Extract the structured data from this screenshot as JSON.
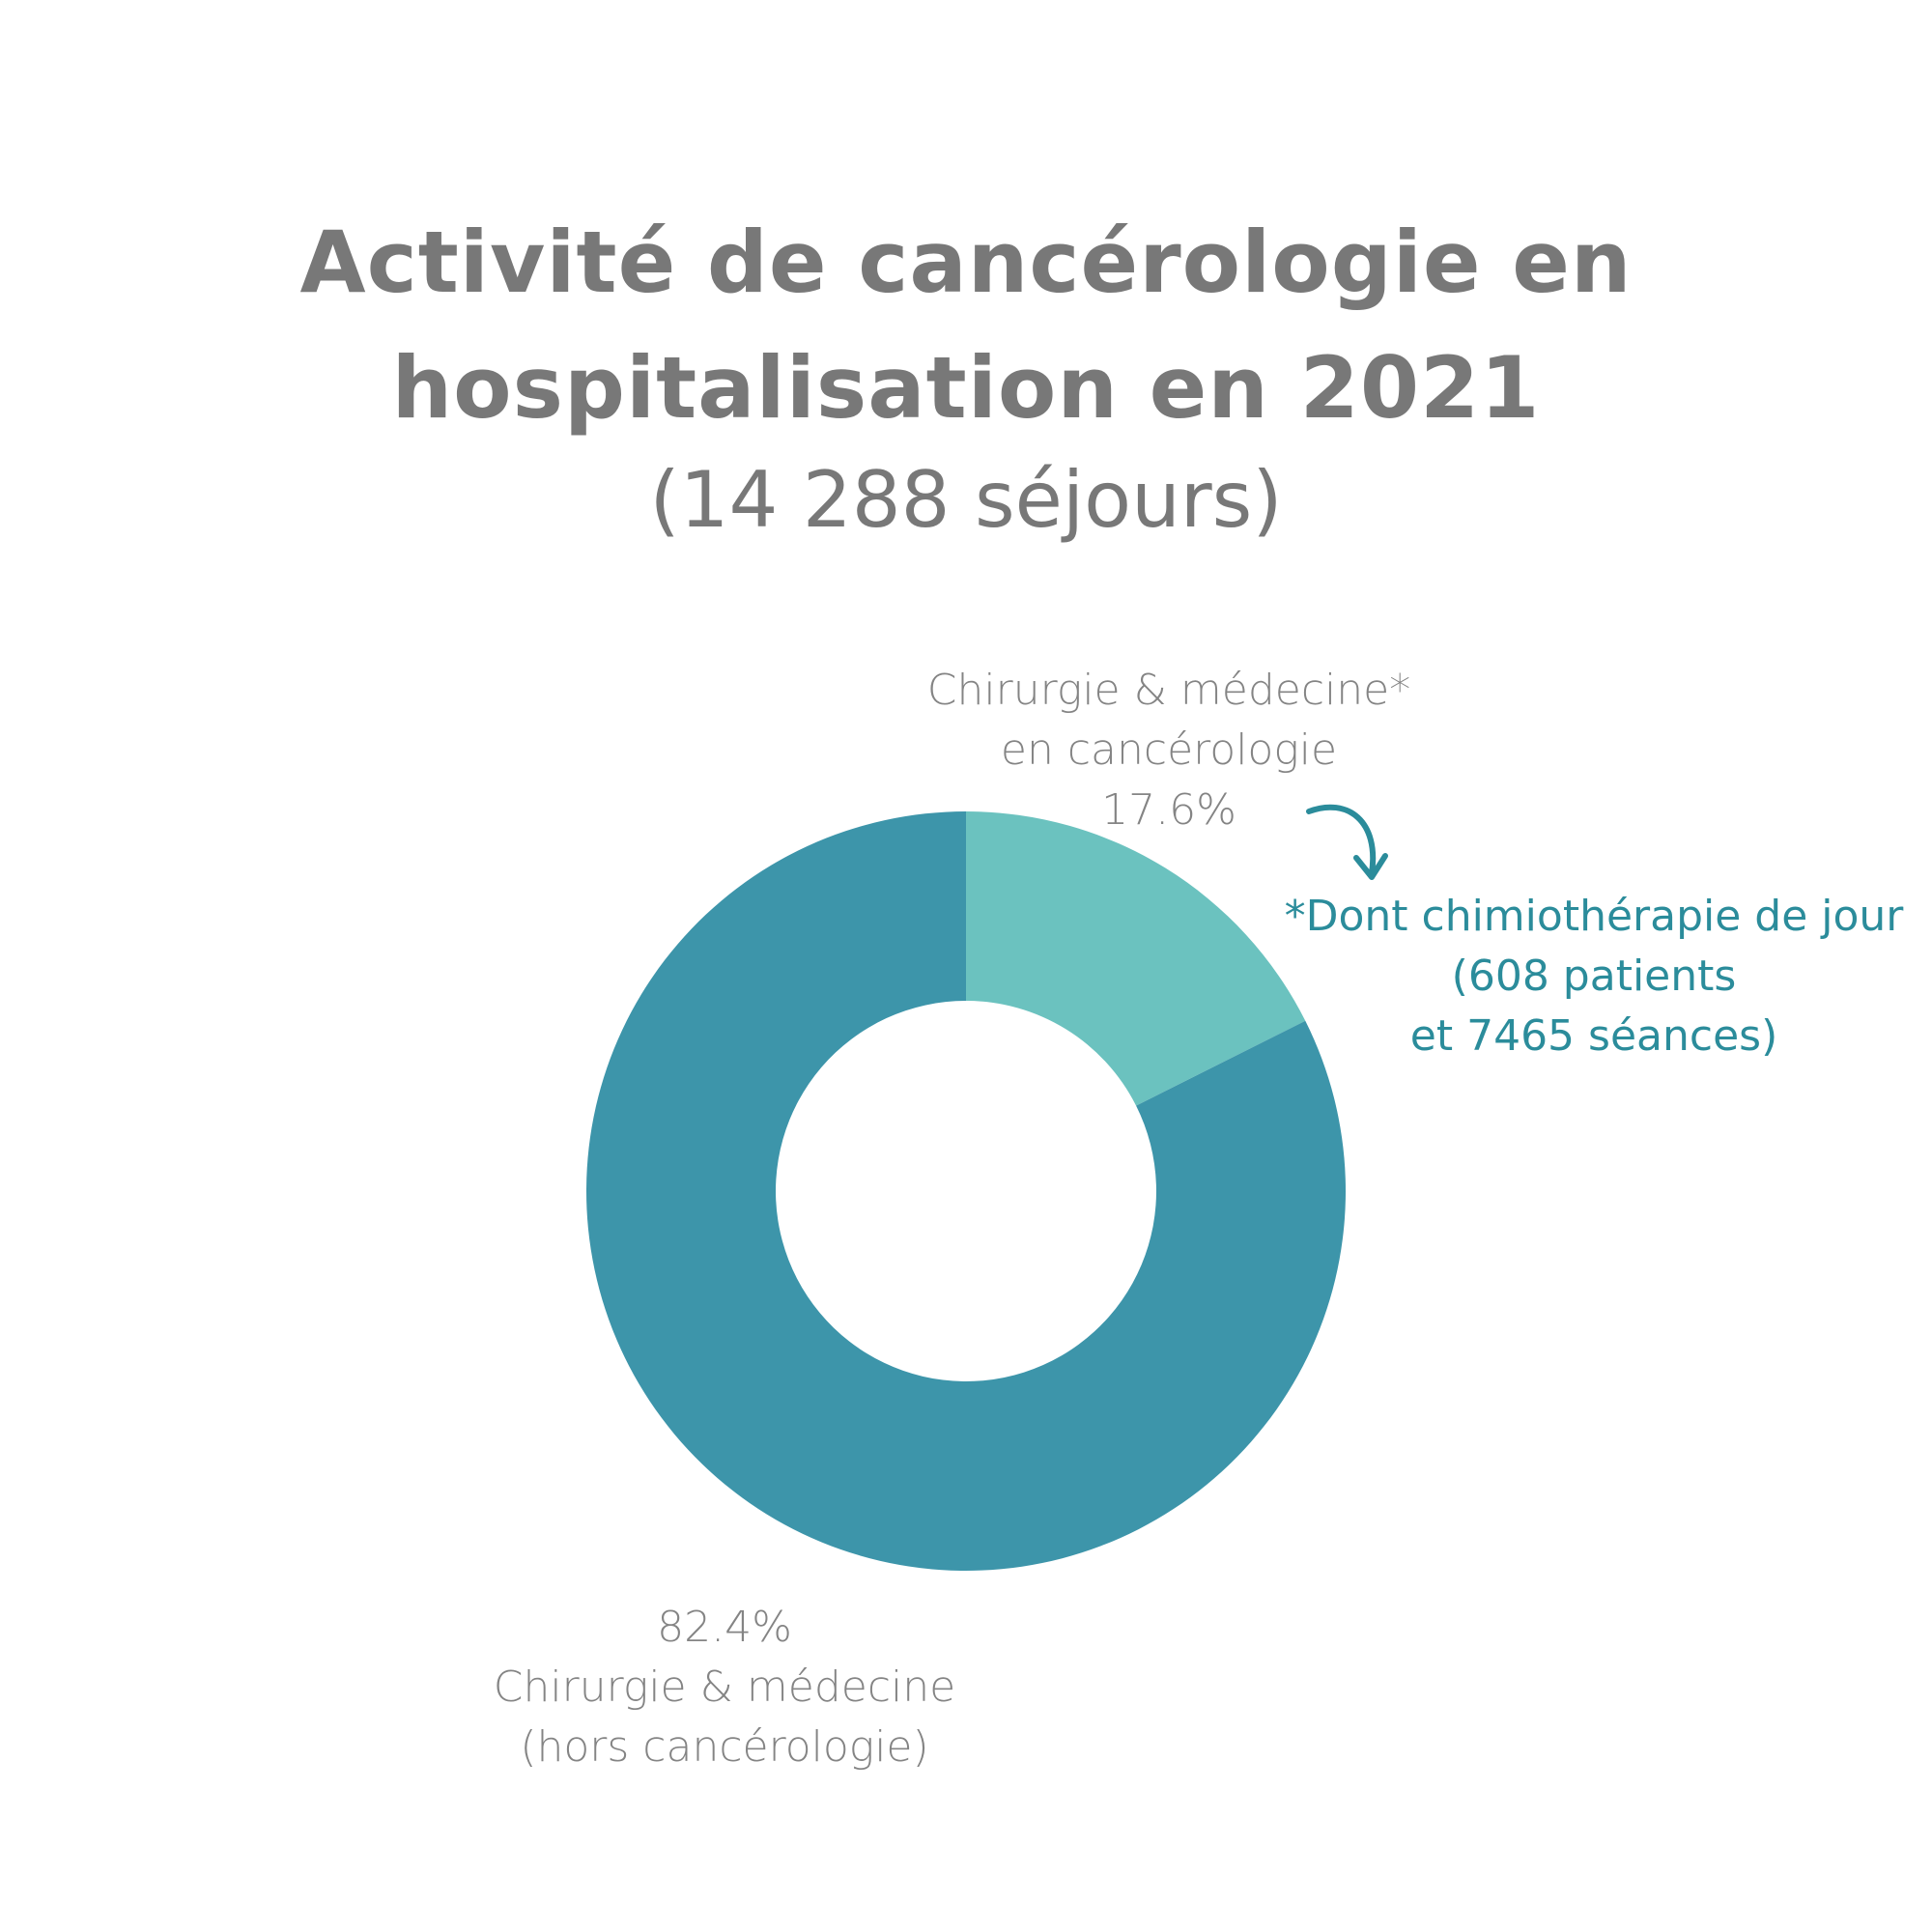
{
  "title": {
    "line1": "Activité de cancérologie en",
    "line2": "hospitalisation en 2021",
    "subtitle": "(14 288 séjours)"
  },
  "chart_data": {
    "type": "pie",
    "style": "donut",
    "slices": [
      {
        "name": "Chirurgie & médecine* en cancérologie",
        "value": 17.6,
        "label_lines": [
          "Chirurgie & médecine*",
          "en cancérologie",
          "17.6%"
        ],
        "color": "#6bc2bf"
      },
      {
        "name": "Chirurgie & médecine (hors cancérologie)",
        "value": 82.4,
        "label_lines": [
          "82.4%",
          "Chirurgie & médecine",
          "(hors cancérologie)"
        ],
        "color": "#3d95aa"
      }
    ],
    "annotation": {
      "lines": [
        "*Dont chimiothérapie de jour",
        "(608 patients",
        "et 7465 séances)"
      ],
      "color": "#2b8c9b",
      "arrow_icon": "curved-arrow-icon"
    }
  }
}
